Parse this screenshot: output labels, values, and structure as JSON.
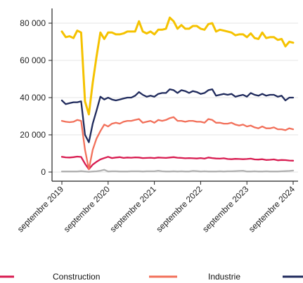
{
  "chart_data": {
    "type": "line",
    "title": "",
    "xlabel": "",
    "ylabel": "",
    "x_ticks": [
      "septembre 2019",
      "septembre 2020",
      "septembre 2021",
      "septembre 2022",
      "septembre 2023",
      "septembre 2024"
    ],
    "y_ticks": [
      "0",
      "20 000",
      "40 000",
      "60 000",
      "80 000"
    ],
    "y_tick_values": [
      0,
      20000,
      40000,
      60000,
      80000
    ],
    "xlim": [
      "2019-09",
      "2024-09"
    ],
    "ylim": [
      0,
      85000
    ],
    "grid": true,
    "legend_position": "bottom",
    "x": [
      "2019-09",
      "2019-10",
      "2019-11",
      "2019-12",
      "2020-01",
      "2020-02",
      "2020-03",
      "2020-04",
      "2020-05",
      "2020-06",
      "2020-07",
      "2020-08",
      "2020-09",
      "2020-10",
      "2020-11",
      "2020-12",
      "2021-01",
      "2021-02",
      "2021-03",
      "2021-04",
      "2021-05",
      "2021-06",
      "2021-07",
      "2021-08",
      "2021-09",
      "2021-10",
      "2021-11",
      "2021-12",
      "2022-01",
      "2022-02",
      "2022-03",
      "2022-04",
      "2022-05",
      "2022-06",
      "2022-07",
      "2022-08",
      "2022-09",
      "2022-10",
      "2022-11",
      "2022-12",
      "2023-01",
      "2023-02",
      "2023-03",
      "2023-04",
      "2023-05",
      "2023-06",
      "2023-07",
      "2023-08",
      "2023-09",
      "2023-10",
      "2023-11",
      "2023-12",
      "2024-01",
      "2024-02",
      "2024-03",
      "2024-04",
      "2024-05",
      "2024-06",
      "2024-07",
      "2024-08",
      "2024-09"
    ],
    "series": [
      {
        "color": "#f5c200",
        "values": [
          75500,
          72500,
          73000,
          72000,
          76000,
          75000,
          38000,
          31000,
          48000,
          62000,
          75000,
          71500,
          75000,
          75000,
          74000,
          74000,
          74500,
          75500,
          75500,
          75500,
          81000,
          75500,
          74500,
          75500,
          74000,
          76500,
          76500,
          77000,
          83000,
          81000,
          77000,
          79000,
          77000,
          77000,
          78500,
          78500,
          77000,
          76500,
          79500,
          80000,
          75500,
          76500,
          76000,
          75500,
          75000,
          73500,
          74000,
          74000,
          72500,
          74500,
          72000,
          71500,
          75000,
          72000,
          72500,
          72500,
          71000,
          71500,
          67500,
          70000,
          69500
        ]
      },
      {
        "name": "Construction",
        "color": "#d81b50",
        "values": [
          8200,
          7900,
          7800,
          8000,
          8300,
          8100,
          4500,
          1500,
          4000,
          5500,
          6800,
          7500,
          8200,
          7500,
          7800,
          8000,
          7600,
          7800,
          7700,
          7900,
          7800,
          7500,
          7600,
          7700,
          7500,
          7800,
          7700,
          7600,
          7800,
          8000,
          7700,
          7600,
          7400,
          7500,
          7400,
          7300,
          7500,
          7200,
          7800,
          7500,
          7300,
          7200,
          7400,
          7000,
          6900,
          7100,
          7000,
          6900,
          7000,
          7200,
          6800,
          6700,
          6900,
          6500,
          6600,
          6800,
          6300,
          6500,
          6400,
          6200,
          6100
        ]
      },
      {
        "name": "Industrie",
        "color": "#f2705a",
        "values": [
          27500,
          27000,
          26800,
          27000,
          28000,
          27500,
          12000,
          1500,
          12000,
          18000,
          22000,
          25500,
          24500,
          26000,
          26500,
          26000,
          27000,
          27500,
          27500,
          28000,
          28500,
          26500,
          27000,
          27500,
          26500,
          28000,
          27500,
          28000,
          29000,
          29500,
          27500,
          27500,
          27000,
          27500,
          27500,
          27000,
          27000,
          26500,
          28500,
          28000,
          26500,
          26500,
          26000,
          26000,
          26500,
          25500,
          25000,
          25500,
          24500,
          25000,
          24000,
          23500,
          24500,
          23500,
          23500,
          24000,
          23000,
          23000,
          22500,
          23500,
          23000
        ]
      },
      {
        "color": "#1f2a5c",
        "values": [
          38500,
          36500,
          37000,
          37500,
          37500,
          38000,
          20000,
          16000,
          26000,
          33000,
          40500,
          39000,
          40000,
          39000,
          38500,
          39000,
          39500,
          40000,
          40000,
          41000,
          43000,
          41500,
          40500,
          41000,
          40500,
          42000,
          42500,
          42500,
          44500,
          44000,
          42500,
          44000,
          43500,
          42500,
          43500,
          43000,
          42000,
          42500,
          44000,
          44500,
          41000,
          41500,
          42000,
          41500,
          42000,
          40500,
          41000,
          41500,
          40500,
          42500,
          41500,
          41000,
          42000,
          41000,
          41500,
          41500,
          40500,
          41000,
          38500,
          40000,
          40000
        ]
      },
      {
        "color": "#b0b0b0",
        "values": [
          300,
          300,
          300,
          300,
          300,
          500,
          300,
          100,
          300,
          400,
          700,
          1200,
          300,
          400,
          400,
          300,
          300,
          300,
          400,
          400,
          400,
          300,
          400,
          400,
          400,
          700,
          400,
          300,
          300,
          400,
          300,
          400,
          300,
          300,
          600,
          500,
          300,
          400,
          300,
          300,
          300,
          400,
          300,
          400,
          400,
          500,
          600,
          700,
          300,
          300,
          400,
          300,
          300,
          400,
          300,
          300,
          300,
          400,
          500,
          600,
          800
        ]
      }
    ]
  }
}
